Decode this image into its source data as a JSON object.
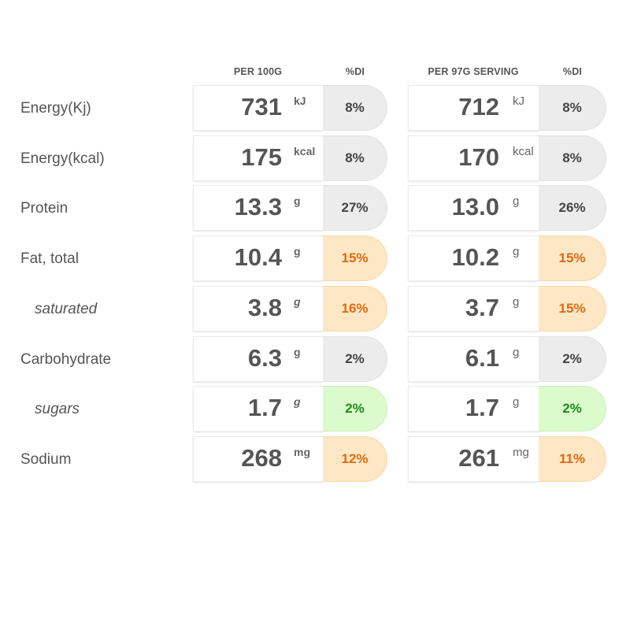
{
  "headers": {
    "per100": "PER 100G",
    "di1": "%DI",
    "perServing": "PER 97G SERVING",
    "di2": "%DI"
  },
  "colors": {
    "grey": "#ececec",
    "amber": "#fde7c5",
    "amber_text": "#e06a10",
    "green": "#dcfbcc",
    "green_text": "#1b8c1b"
  },
  "rows": [
    {
      "label": "Energy(Kj)",
      "sub": false,
      "v100": "731",
      "u100": "kJ",
      "di100": "8%",
      "c100": "grey",
      "vserv": "712",
      "userv": "kJ",
      "diserv": "8%",
      "cserv": "grey"
    },
    {
      "label": "Energy(kcal)",
      "sub": false,
      "v100": "175",
      "u100": "kcal",
      "di100": "8%",
      "c100": "grey",
      "vserv": "170",
      "userv": "kcal",
      "diserv": "8%",
      "cserv": "grey"
    },
    {
      "label": "Protein",
      "sub": false,
      "v100": "13.3",
      "u100": "g",
      "di100": "27%",
      "c100": "grey",
      "vserv": "13.0",
      "userv": "g",
      "diserv": "26%",
      "cserv": "grey"
    },
    {
      "label": "Fat, total",
      "sub": false,
      "v100": "10.4",
      "u100": "g",
      "di100": "15%",
      "c100": "amber",
      "vserv": "10.2",
      "userv": "g",
      "diserv": "15%",
      "cserv": "amber"
    },
    {
      "label": "saturated",
      "sub": true,
      "v100": "3.8",
      "u100": "g",
      "di100": "16%",
      "c100": "amber",
      "vserv": "3.7",
      "userv": "g",
      "diserv": "15%",
      "cserv": "amber"
    },
    {
      "label": "Carbohydrate",
      "sub": false,
      "v100": "6.3",
      "u100": "g",
      "di100": "2%",
      "c100": "grey",
      "vserv": "6.1",
      "userv": "g",
      "diserv": "2%",
      "cserv": "grey"
    },
    {
      "label": "sugars",
      "sub": true,
      "v100": "1.7",
      "u100": "g",
      "di100": "2%",
      "c100": "green",
      "vserv": "1.7",
      "userv": "g",
      "diserv": "2%",
      "cserv": "green"
    },
    {
      "label": "Sodium",
      "sub": false,
      "v100": "268",
      "u100": "mg",
      "di100": "12%",
      "c100": "amber",
      "vserv": "261",
      "userv": "mg",
      "diserv": "11%",
      "cserv": "amber"
    }
  ]
}
